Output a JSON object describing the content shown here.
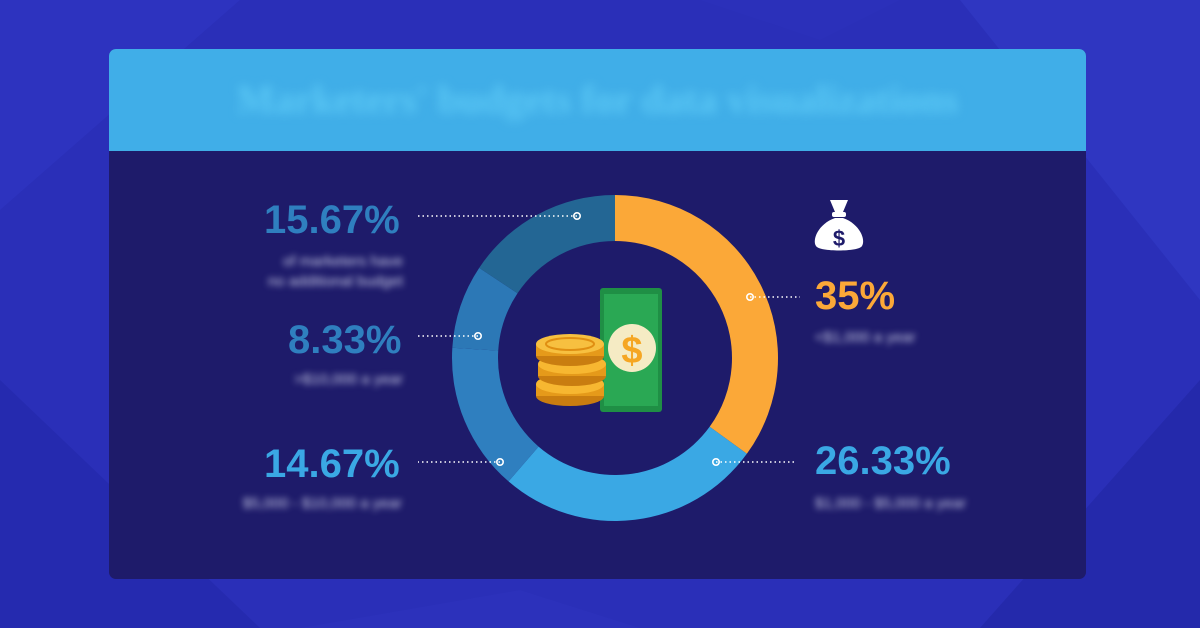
{
  "title": "Marketers' budgets for data visualizations",
  "colors": {
    "background": "#2a2fb8",
    "card": "#1e1b6a",
    "header": "#40aee8",
    "orange": "#fba838",
    "light_blue": "#3aa8e4",
    "mid_blue": "#2f7fbf",
    "dark_blue": "#236694"
  },
  "icons": {
    "money_bag": "money-bag-icon",
    "cash": "cash-coins-icon"
  },
  "chart_data": {
    "type": "pie",
    "donut": true,
    "slices": [
      {
        "value": 35,
        "label": "35%",
        "description": "<$1,000 a year",
        "color": "#fba838"
      },
      {
        "value": 26.33,
        "label": "26.33%",
        "description": "$1,000 - $5,000 a year",
        "color": "#3aa8e4"
      },
      {
        "value": 14.67,
        "label": "14.67%",
        "description": "$5,000 - $10,000 a year",
        "color": "#2f7fbf"
      },
      {
        "value": 8.33,
        "label": "8.33%",
        "description": ">$10,000 a year",
        "color": "#2c78b6"
      },
      {
        "value": 15.67,
        "label": "15.67%",
        "description": "of marketers have no additional budget",
        "color": "#236694"
      }
    ]
  }
}
